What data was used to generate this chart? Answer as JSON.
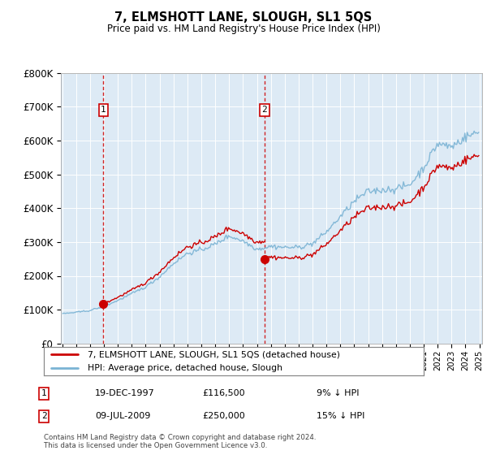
{
  "title": "7, ELMSHOTT LANE, SLOUGH, SL1 5QS",
  "subtitle": "Price paid vs. HM Land Registry's House Price Index (HPI)",
  "legend_line1": "7, ELMSHOTT LANE, SLOUGH, SL1 5QS (detached house)",
  "legend_line2": "HPI: Average price, detached house, Slough",
  "transaction1_date": "19-DEC-1997",
  "transaction1_price": 116500,
  "transaction1_label": "9% ↓ HPI",
  "transaction2_date": "09-JUL-2009",
  "transaction2_price": 250000,
  "transaction2_label": "15% ↓ HPI",
  "footer": "Contains HM Land Registry data © Crown copyright and database right 2024.\nThis data is licensed under the Open Government Licence v3.0.",
  "hpi_color": "#7ab3d4",
  "price_color": "#cc0000",
  "dashed_color": "#cc0000",
  "bg_color": "#ddeaf5",
  "ylim": [
    0,
    800000
  ],
  "yticks": [
    0,
    100000,
    200000,
    300000,
    400000,
    500000,
    600000,
    700000,
    800000
  ],
  "ytick_labels": [
    "£0",
    "£100K",
    "£200K",
    "£300K",
    "£400K",
    "£500K",
    "£600K",
    "£700K",
    "£800K"
  ]
}
